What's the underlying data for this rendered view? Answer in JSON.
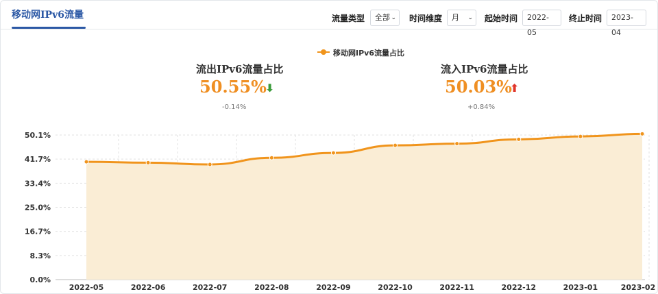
{
  "header": {
    "title": "移动网IPv6流量",
    "traffic_type_label": "流量类型",
    "traffic_type_value": "全部",
    "time_dim_label": "时间维度",
    "time_dim_value": "月",
    "start_label": "起始时间",
    "start_value": "2022-05",
    "end_label": "终止时间",
    "end_value": "2023-04"
  },
  "legend": {
    "label": "移动网IPv6流量占比"
  },
  "stats": [
    {
      "title": "流出IPv6流量占比",
      "value": "50.55%",
      "change": "-0.14%",
      "direction": "down",
      "arrow": "⬇",
      "arrow_color": "#3a9b3a"
    },
    {
      "title": "流入IPv6流量占比",
      "value": "50.03%",
      "change": "+0.84%",
      "direction": "up",
      "arrow": "⬆",
      "arrow_color": "#e0352b"
    }
  ],
  "colors": {
    "accent": "#f0941c",
    "area": "#faedd5",
    "value": "#ef8f23",
    "brand": "#2b58a5"
  },
  "chart_data": {
    "type": "area",
    "categories": [
      "2022-05",
      "2022-06",
      "2022-07",
      "2022-08",
      "2022-09",
      "2022-10",
      "2022-11",
      "2022-12",
      "2023-01",
      "2023-02"
    ],
    "series": [
      {
        "name": "移动网IPv6流量占比",
        "values": [
          40.8,
          40.5,
          39.9,
          42.2,
          43.9,
          46.5,
          47.1,
          48.6,
          49.6,
          50.5
        ]
      }
    ],
    "y_ticks": [
      "0.0%",
      "8.3%",
      "16.7%",
      "25.0%",
      "33.4%",
      "41.7%",
      "50.1%"
    ],
    "ylim": [
      0,
      50.1
    ],
    "grid": true,
    "legend_position": "top-center"
  }
}
